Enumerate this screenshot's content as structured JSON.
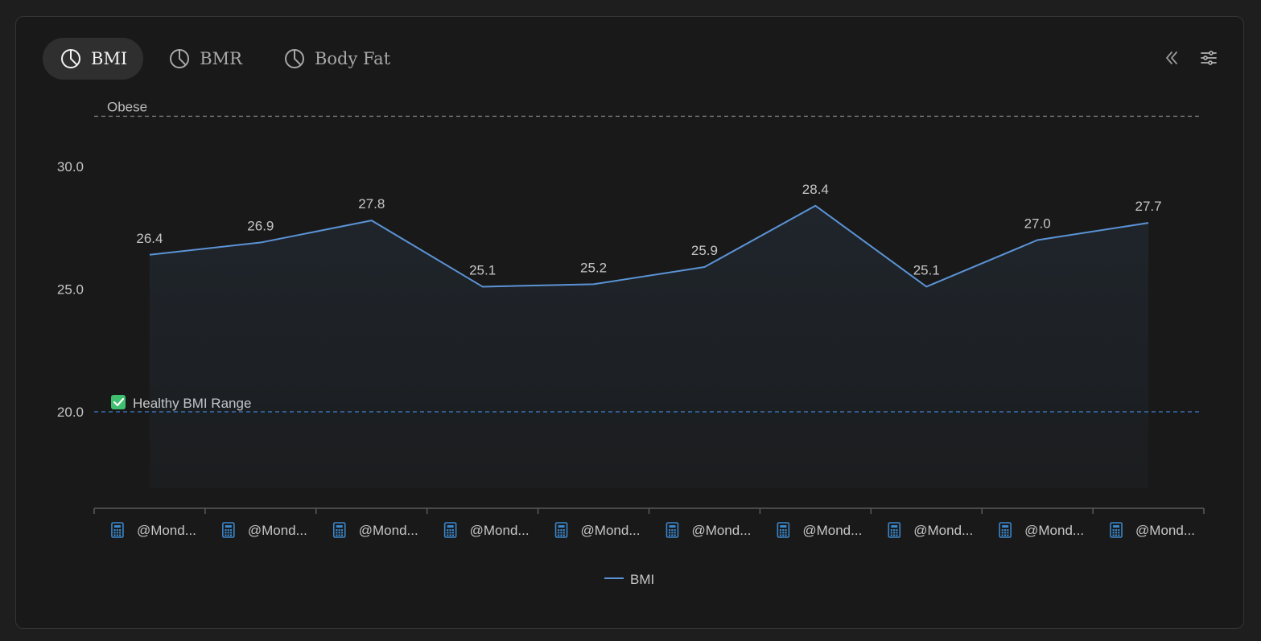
{
  "tabs": [
    {
      "label": "BMI",
      "icon": "pie-chart-icon",
      "active": true
    },
    {
      "label": "BMR",
      "icon": "pie-chart-icon",
      "active": false
    },
    {
      "label": "Body Fat",
      "icon": "pie-chart-icon",
      "active": false
    }
  ],
  "toolbar": {
    "collapse_icon": "double-chevron-left-icon",
    "settings_icon": "sliders-icon"
  },
  "colors": {
    "series": "#5b93d6",
    "healthy_line": "#3f7fd0",
    "obese_line": "#8a8a8a",
    "calendar_icon": "#3b86c8",
    "check_green": "#3fbf6f"
  },
  "chart_data": {
    "type": "line",
    "categories": [
      "@Mond...",
      "@Mond...",
      "@Mond...",
      "@Mond...",
      "@Mond...",
      "@Mond...",
      "@Mond...",
      "@Mond...",
      "@Mond...",
      "@Mond..."
    ],
    "series": [
      {
        "name": "BMI",
        "values": [
          26.4,
          26.9,
          27.8,
          25.1,
          25.2,
          25.9,
          28.4,
          25.1,
          27.0,
          27.7
        ]
      }
    ],
    "data_labels": [
      "26.4",
      "26.9",
      "27.8",
      "25.1",
      "25.2",
      "25.9",
      "28.4",
      "25.1",
      "27.0",
      "27.7"
    ],
    "y_ticks": [
      "30.0",
      "25.0",
      "20.0"
    ],
    "y_tick_values": [
      30,
      25,
      20
    ],
    "ylim": [
      16,
      32
    ],
    "reference_lines": [
      {
        "label": "Obese",
        "value": 32,
        "style": "dashed",
        "color": "#8a8a8a"
      },
      {
        "label": "Healthy BMI Range",
        "value": 20,
        "style": "dashed",
        "color": "#3f7fd0",
        "icon": "check-icon"
      }
    ],
    "legend": {
      "position": "bottom-center",
      "entries": [
        "BMI"
      ]
    },
    "area_fill": true,
    "grid": false,
    "xlabel": "",
    "ylabel": ""
  }
}
